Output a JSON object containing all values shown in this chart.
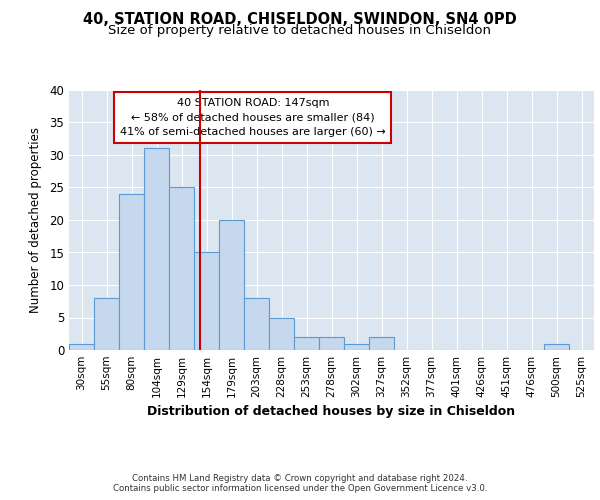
{
  "title1": "40, STATION ROAD, CHISELDON, SWINDON, SN4 0PD",
  "title2": "Size of property relative to detached houses in Chiseldon",
  "xlabel": "Distribution of detached houses by size in Chiseldon",
  "ylabel": "Number of detached properties",
  "categories": [
    "30sqm",
    "55sqm",
    "80sqm",
    "104sqm",
    "129sqm",
    "154sqm",
    "179sqm",
    "203sqm",
    "228sqm",
    "253sqm",
    "278sqm",
    "302sqm",
    "327sqm",
    "352sqm",
    "377sqm",
    "401sqm",
    "426sqm",
    "451sqm",
    "476sqm",
    "500sqm",
    "525sqm"
  ],
  "values": [
    1,
    8,
    24,
    31,
    25,
    15,
    20,
    8,
    5,
    2,
    2,
    1,
    2,
    0,
    0,
    0,
    0,
    0,
    0,
    1,
    0
  ],
  "bar_color": "#c5d8ed",
  "bar_edge_color": "#5b9bd5",
  "red_line_color": "#cc0000",
  "annotation_text1": "40 STATION ROAD: 147sqm",
  "annotation_text2": "← 58% of detached houses are smaller (84)",
  "annotation_text3": "41% of semi-detached houses are larger (60) →",
  "footer1": "Contains HM Land Registry data © Crown copyright and database right 2024.",
  "footer2": "Contains public sector information licensed under the Open Government Licence v3.0.",
  "ylim": [
    0,
    40
  ],
  "yticks": [
    0,
    5,
    10,
    15,
    20,
    25,
    30,
    35,
    40
  ],
  "bg_color": "#dce6f1",
  "title1_fontsize": 10.5,
  "title2_fontsize": 9.5,
  "xlabel_fontsize": 9,
  "ylabel_fontsize": 8.5,
  "red_line_x": 4.72
}
